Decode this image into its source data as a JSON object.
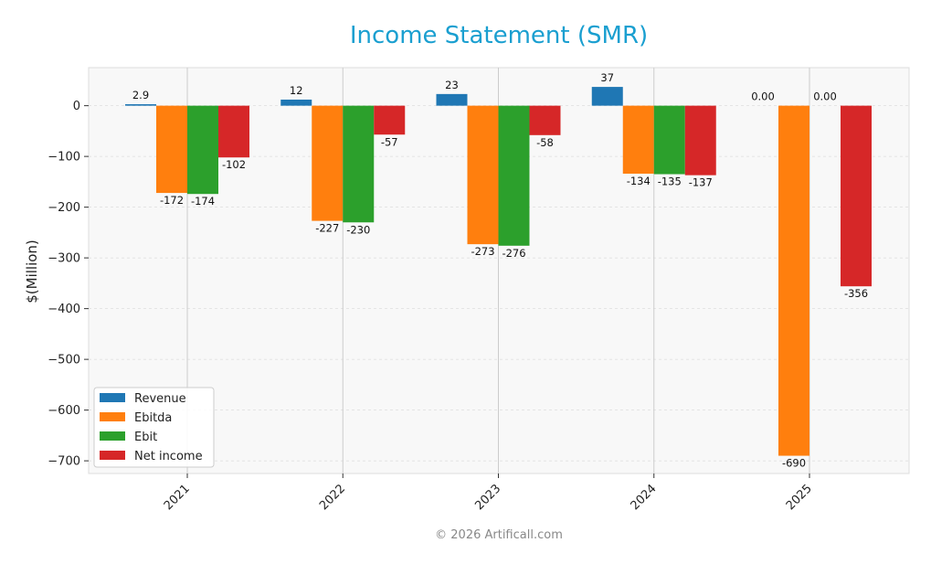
{
  "chart_data": {
    "type": "bar",
    "title": "Income Statement (SMR)",
    "xlabel": "",
    "ylabel": "$(Million)",
    "categories": [
      "2021",
      "2022",
      "2023",
      "2024",
      "2025"
    ],
    "series": [
      {
        "name": "Revenue",
        "color": "#1f77b4",
        "values": [
          2.9,
          12,
          23,
          37,
          0.0
        ],
        "labels": [
          "2.9",
          "12",
          "23",
          "37",
          "0.00"
        ]
      },
      {
        "name": "Ebitda",
        "color": "#ff7f0e",
        "values": [
          -172,
          -227,
          -273,
          -134,
          -690
        ],
        "labels": [
          "-172",
          "-227",
          "-273",
          "-134",
          "-690"
        ]
      },
      {
        "name": "Ebit",
        "color": "#2ca02c",
        "values": [
          -174,
          -230,
          -276,
          -135,
          0.0
        ],
        "labels": [
          "-174",
          "-230",
          "-276",
          "-135",
          "0.00"
        ]
      },
      {
        "name": "Net income",
        "color": "#d62728",
        "values": [
          -102,
          -57,
          -58,
          -137,
          -356
        ],
        "labels": [
          "-102",
          "-57",
          "-58",
          "-137",
          "-356"
        ]
      }
    ],
    "ylim": [
      -725,
      75
    ],
    "yticks": [
      0,
      -100,
      -200,
      -300,
      -400,
      -500,
      -600,
      -700
    ],
    "ytick_labels": [
      "0",
      "−100",
      "−200",
      "−300",
      "−400",
      "−500",
      "−600",
      "−700"
    ],
    "grid": true,
    "legend_position": "lower-left"
  },
  "footer": {
    "text": "© 2026 Artificall.com"
  }
}
